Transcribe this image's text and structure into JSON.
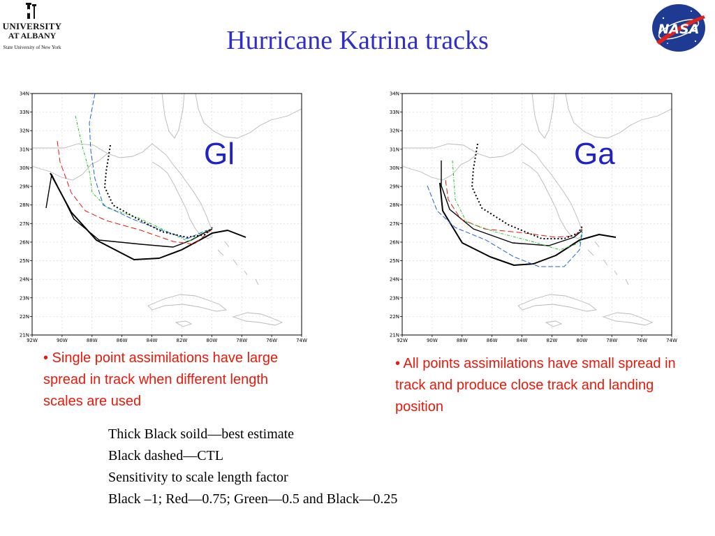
{
  "slide": {
    "title": "Hurricane Katrina tracks"
  },
  "logos": {
    "university": {
      "icon": "university-seal-icon",
      "line1": "UNIVERSITY",
      "line2": "AT ALBANY",
      "line3": "State University of New York"
    },
    "agency": {
      "icon": "nasa-meatball-icon",
      "text": "NASA"
    }
  },
  "panels": [
    {
      "label": "Gl",
      "lat_ticks": [
        "34N",
        "33N",
        "32N",
        "31N",
        "30N",
        "29N",
        "28N",
        "27N",
        "26N",
        "25N",
        "24N",
        "23N",
        "22N",
        "21N"
      ],
      "lon_ticks": [
        "92W",
        "90W",
        "88W",
        "86W",
        "84W",
        "82W",
        "80W",
        "78W",
        "76W",
        "74W"
      ],
      "bullet": "• Single point assimilations have large spread in track when different length scales are used"
    },
    {
      "label": "Ga",
      "lat_ticks": [
        "34N",
        "33N",
        "32N",
        "31N",
        "30N",
        "29N",
        "28N",
        "27N",
        "26N",
        "25N",
        "24N",
        "23N",
        "22N",
        "21N"
      ],
      "lon_ticks": [
        "92W",
        "90W",
        "88W",
        "86W",
        "84W",
        "82W",
        "80W",
        "78W",
        "76W",
        "74W"
      ],
      "bullet": "• All points assimilations have small spread in track and produce close track and landing position"
    }
  ],
  "legend_lines": [
    "Thick Black soild—best estimate",
    "Black dashed—CTL",
    "Sensitivity to scale length factor",
    "Black –1; Red—0.75; Green—0.5 and Black—0.25"
  ],
  "colors": {
    "title": "#2f2fc6",
    "panel_label": "#1e22c8",
    "bullet_text": "#e8190a",
    "track_best": "#000000",
    "track_ctl": "#000000",
    "track_red": "#e8190a",
    "track_green": "#22c022",
    "track_blue": "#2060e0",
    "coastline": "#b8b8b8",
    "grid": "#d0d0d0"
  }
}
